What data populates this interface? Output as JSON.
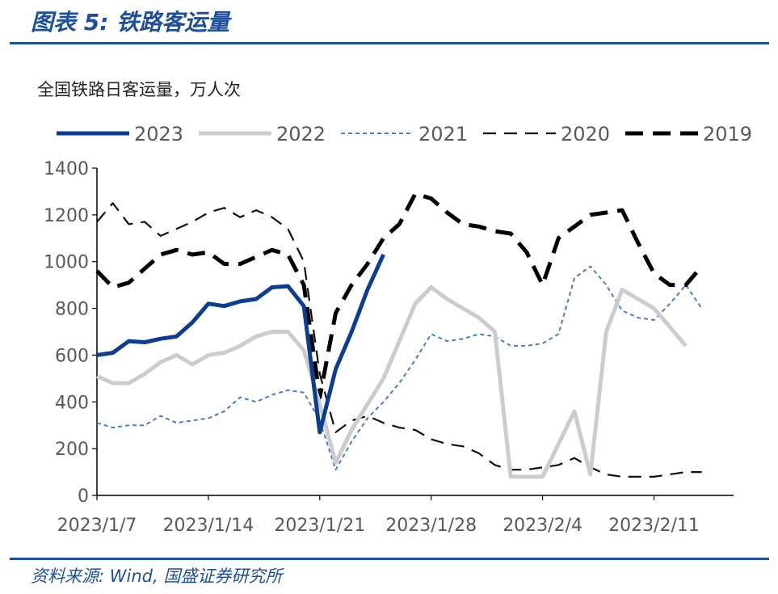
{
  "header": {
    "title": "图表 5: 铁路客运量",
    "subtitle": "全国铁路日客运量，万人次"
  },
  "footer": {
    "source": "资料来源: Wind, 国盛证券研究所"
  },
  "colors": {
    "brand_blue": "#1e4f9c",
    "s2023": "#0b3d91",
    "s2022": "#cccccc",
    "s2021": "#4a7cc7",
    "s2020": "#111111",
    "s2019": "#000000"
  },
  "chart_data": {
    "type": "line",
    "x_ticks": [
      "2023/1/7",
      "2023/1/14",
      "2023/1/21",
      "2023/1/28",
      "2023/2/4",
      "2023/2/11"
    ],
    "ylim": [
      0,
      1400
    ],
    "y_ticks": [
      0,
      200,
      400,
      600,
      800,
      1000,
      1200,
      1400
    ],
    "legend_position": "top",
    "x_unit": "days since 2023/1/7",
    "series": [
      {
        "name": "2023",
        "x": [
          0,
          1,
          2,
          3,
          4,
          5,
          6,
          7,
          8,
          9,
          10,
          11,
          12,
          13,
          14,
          15,
          16,
          17,
          18,
          19
        ],
        "y": [
          600,
          610,
          660,
          655,
          670,
          680,
          740,
          820,
          810,
          830,
          840,
          890,
          895,
          810,
          270,
          540,
          700,
          880,
          1030,
          null
        ]
      },
      {
        "name": "2022",
        "x": [
          0,
          1,
          2,
          3,
          4,
          5,
          6,
          7,
          8,
          9,
          10,
          11,
          12,
          13,
          14,
          15,
          16,
          17,
          18,
          19,
          20,
          21,
          22,
          23,
          24,
          25,
          26,
          27,
          28,
          29,
          30,
          31,
          32,
          33,
          34,
          35,
          36,
          37,
          38
        ],
        "y": [
          510,
          480,
          480,
          520,
          570,
          600,
          560,
          600,
          610,
          640,
          680,
          700,
          700,
          620,
          390,
          140,
          280,
          390,
          500,
          660,
          820,
          890,
          840,
          800,
          760,
          700,
          80,
          80,
          80,
          220,
          360,
          90,
          700,
          880,
          840,
          800,
          720,
          640,
          null
        ]
      },
      {
        "name": "2021",
        "x": [
          0,
          1,
          2,
          3,
          4,
          5,
          6,
          7,
          8,
          9,
          10,
          11,
          12,
          13,
          14,
          15,
          16,
          17,
          18,
          19,
          20,
          21,
          22,
          23,
          24,
          25,
          26,
          27,
          28,
          29,
          30,
          31,
          32,
          33,
          34,
          35,
          36,
          37,
          38
        ],
        "y": [
          310,
          290,
          300,
          300,
          340,
          310,
          320,
          330,
          360,
          420,
          400,
          430,
          450,
          440,
          320,
          110,
          230,
          330,
          400,
          480,
          580,
          690,
          660,
          670,
          690,
          680,
          640,
          640,
          650,
          690,
          930,
          980,
          900,
          790,
          760,
          750,
          820,
          900,
          800
        ]
      },
      {
        "name": "2020",
        "x": [
          0,
          1,
          2,
          3,
          4,
          5,
          6,
          7,
          8,
          9,
          10,
          11,
          12,
          13,
          14,
          15,
          16,
          17,
          18,
          19,
          20,
          21,
          22,
          23,
          24,
          25,
          26,
          27,
          28,
          29,
          30,
          31,
          32,
          33,
          34,
          35,
          36,
          37,
          38
        ],
        "y": [
          1170,
          1250,
          1160,
          1170,
          1110,
          1140,
          1170,
          1210,
          1230,
          1190,
          1220,
          1190,
          1140,
          1000,
          520,
          270,
          320,
          340,
          310,
          290,
          280,
          240,
          220,
          210,
          180,
          130,
          110,
          110,
          120,
          130,
          160,
          120,
          90,
          80,
          80,
          80,
          90,
          100,
          100
        ]
      },
      {
        "name": "2019",
        "x": [
          0,
          1,
          2,
          3,
          4,
          5,
          6,
          7,
          8,
          9,
          10,
          11,
          12,
          13,
          14,
          15,
          16,
          17,
          18,
          19,
          20,
          21,
          22,
          23,
          24,
          25,
          26,
          27,
          28,
          29,
          30,
          31,
          32,
          33,
          34,
          35,
          36,
          37,
          38
        ],
        "y": [
          960,
          890,
          910,
          970,
          1030,
          1050,
          1030,
          1040,
          990,
          990,
          1020,
          1050,
          1030,
          900,
          420,
          780,
          900,
          990,
          1100,
          1160,
          1290,
          1270,
          1210,
          1160,
          1150,
          1130,
          1120,
          1040,
          900,
          1100,
          1150,
          1200,
          1210,
          1220,
          1080,
          950,
          900,
          900,
          980
        ]
      }
    ]
  }
}
